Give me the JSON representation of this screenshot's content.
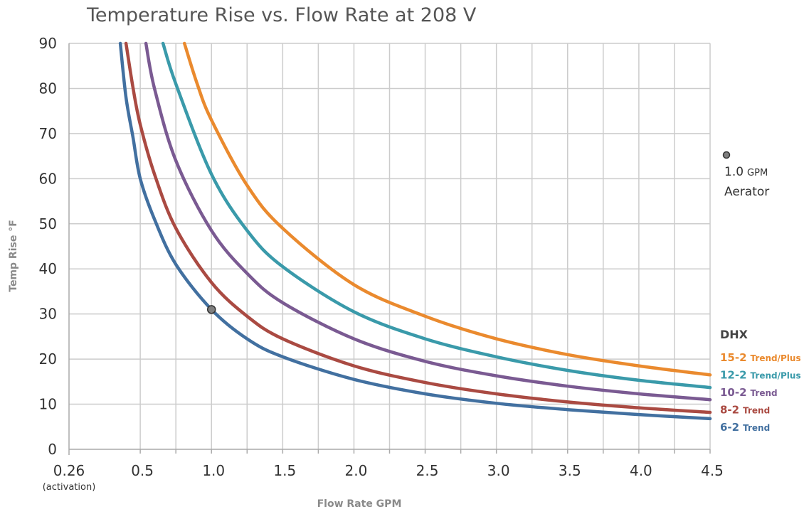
{
  "chart_data": {
    "type": "line",
    "title": "Temperature Rise vs. Flow Rate at 208 V",
    "xlabel": "Flow Rate GPM",
    "ylabel": "Temp Rise °F",
    "xlim": [
      0,
      4.5
    ],
    "ylim": [
      0,
      90
    ],
    "grid": true,
    "x_ticks": [
      {
        "value": 0.26,
        "label": "0.26",
        "sublabel": "(activation)"
      },
      {
        "value": 0.5,
        "label": "0.5"
      },
      {
        "value": 1.0,
        "label": "1.0"
      },
      {
        "value": 1.5,
        "label": "1.5"
      },
      {
        "value": 2.0,
        "label": "2.0"
      },
      {
        "value": 2.5,
        "label": "2.5"
      },
      {
        "value": 3.0,
        "label": "3.0"
      },
      {
        "value": 3.5,
        "label": "3.5"
      },
      {
        "value": 4.0,
        "label": "4.0"
      },
      {
        "value": 4.5,
        "label": "4.5"
      }
    ],
    "x_gridlines": [
      0.5,
      0.75,
      1.0,
      1.25,
      1.5,
      1.75,
      2.0,
      2.25,
      2.5,
      2.75,
      3.0,
      3.25,
      3.5,
      3.75,
      4.0,
      4.25,
      4.5
    ],
    "y_ticks": [
      0,
      10,
      20,
      30,
      40,
      50,
      60,
      70,
      80,
      90
    ],
    "legend": {
      "title": "DHX",
      "position": "right",
      "entries": [
        {
          "model": "15-2",
          "variant": "Trend/Plus",
          "color": "#ea8a2e"
        },
        {
          "model": "12-2",
          "variant": "Trend/Plus",
          "color": "#3a9aaa"
        },
        {
          "model": "10-2",
          "variant": "Trend",
          "color": "#7a5a92"
        },
        {
          "model": "8-2",
          "variant": "Trend",
          "color": "#aa4a42"
        },
        {
          "model": "6-2",
          "variant": "Trend",
          "color": "#4270a0"
        }
      ]
    },
    "series": [
      {
        "name": "15-2 Trend/Plus",
        "color": "#ea8a2e",
        "x": [
          0.81,
          0.9,
          1.0,
          1.25,
          1.5,
          2.0,
          2.5,
          3.0,
          3.5,
          4.0,
          4.5
        ],
        "y": [
          90,
          81,
          73,
          58.5,
          49,
          36.5,
          29.5,
          24.5,
          21,
          18.5,
          16.5
        ]
      },
      {
        "name": "12-2 Trend/Plus",
        "color": "#3a9aaa",
        "x": [
          0.66,
          0.75,
          1.0,
          1.25,
          1.5,
          2.0,
          2.5,
          3.0,
          3.5,
          4.0,
          4.5
        ],
        "y": [
          90,
          81,
          61,
          48.5,
          40.5,
          30.5,
          24.5,
          20.5,
          17.5,
          15.3,
          13.7
        ]
      },
      {
        "name": "10-2 Trend",
        "color": "#7a5a92",
        "x": [
          0.54,
          0.6,
          0.75,
          1.0,
          1.25,
          1.5,
          2.0,
          2.5,
          3.0,
          3.5,
          4.0,
          4.5
        ],
        "y": [
          90,
          80,
          64,
          48.5,
          39,
          32.5,
          24.5,
          19.5,
          16.3,
          14,
          12.3,
          11
        ]
      },
      {
        "name": "8-2 Trend",
        "color": "#aa4a42",
        "x": [
          0.4,
          0.45,
          0.5,
          0.6,
          0.75,
          1.0,
          1.25,
          1.5,
          2.0,
          2.5,
          3.0,
          3.5,
          4.0,
          4.5
        ],
        "y": [
          90,
          80,
          72,
          61,
          49,
          37,
          29.5,
          24.5,
          18.5,
          14.8,
          12.3,
          10.5,
          9.2,
          8.2
        ]
      },
      {
        "name": "6-2 Trend",
        "color": "#4270a0",
        "x": [
          0.36,
          0.4,
          0.45,
          0.5,
          0.6,
          0.75,
          1.0,
          1.25,
          1.5,
          2.0,
          2.5,
          3.0,
          3.5,
          4.0,
          4.5
        ],
        "y": [
          90,
          78,
          69,
          60,
          51,
          41,
          31,
          24.5,
          20.5,
          15.5,
          12.3,
          10.2,
          8.8,
          7.7,
          6.8
        ]
      }
    ],
    "markers": [
      {
        "x": 1.0,
        "y": 31,
        "color": "#7f7f7f"
      }
    ],
    "annotation": {
      "value": "1.0",
      "unit": "GPM",
      "label": "Aerator",
      "marker_color": "#7f7f7f"
    }
  }
}
